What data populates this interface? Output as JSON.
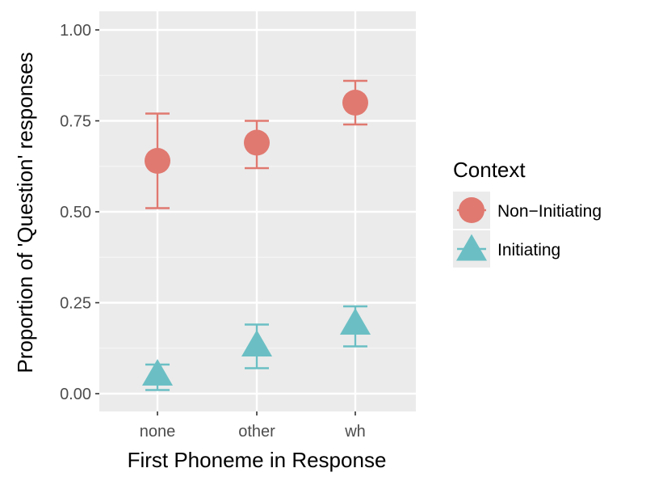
{
  "chart_data": {
    "type": "scatter",
    "title": "",
    "xlabel": "First Phoneme in Response",
    "ylabel": "Proportion of 'Question' responses",
    "categories": [
      "none",
      "other",
      "wh"
    ],
    "ylim": [
      -0.05,
      1.05
    ],
    "yticks": [
      0.0,
      0.25,
      0.5,
      0.75,
      1.0
    ],
    "ytick_labels": [
      "0.00",
      "0.25",
      "0.50",
      "0.75",
      "1.00"
    ],
    "grid": true,
    "legend": {
      "title": "Context",
      "placement": "right"
    },
    "series": [
      {
        "name": "Non−Initiating",
        "marker": "circle",
        "color": "#E07970",
        "values": [
          0.64,
          0.69,
          0.8
        ],
        "lower": [
          0.51,
          0.62,
          0.74
        ],
        "upper": [
          0.77,
          0.75,
          0.86
        ]
      },
      {
        "name": "Initiating",
        "marker": "triangle",
        "color": "#6BBFC4",
        "values": [
          0.05,
          0.13,
          0.19
        ],
        "lower": [
          0.01,
          0.07,
          0.13
        ],
        "upper": [
          0.08,
          0.19,
          0.24
        ]
      }
    ]
  }
}
